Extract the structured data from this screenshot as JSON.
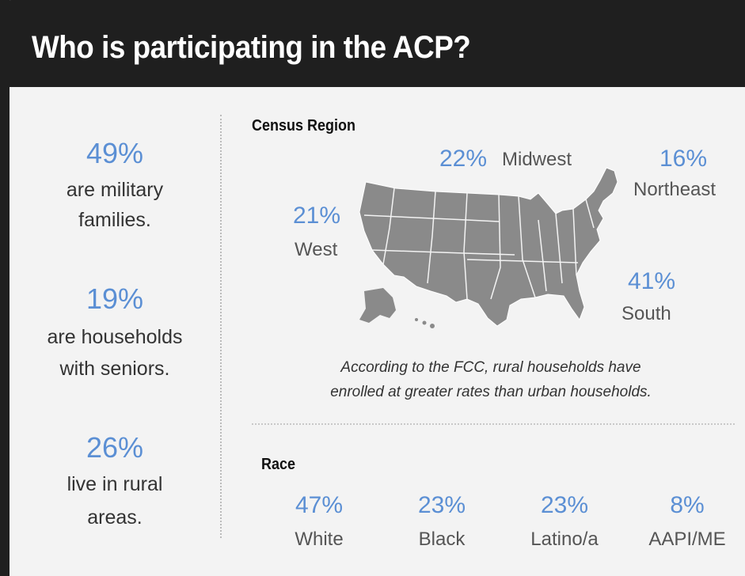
{
  "header": {
    "title": "Who is participating in the ACP?"
  },
  "left_stats": [
    {
      "value": "49%",
      "lines": [
        "are military",
        "families."
      ]
    },
    {
      "value": "19%",
      "lines": [
        "are households",
        "with seniors."
      ]
    },
    {
      "value": "26%",
      "lines": [
        "live in rural",
        "areas."
      ]
    }
  ],
  "census_region": {
    "heading": "Census Region",
    "regions": [
      {
        "value": "22%",
        "name": "Midwest"
      },
      {
        "value": "16%",
        "name": "Northeast"
      },
      {
        "value": "21%",
        "name": "West"
      },
      {
        "value": "41%",
        "name": "South"
      }
    ],
    "note": [
      "According to the FCC, rural households have",
      "enrolled at greater rates than urban households."
    ]
  },
  "race": {
    "heading": "Race",
    "groups": [
      {
        "value": "47%",
        "name": "White"
      },
      {
        "value": "23%",
        "name": "Black"
      },
      {
        "value": "23%",
        "name": "Latino/a"
      },
      {
        "value": "8%",
        "name": "AAPI/ME"
      }
    ]
  }
}
